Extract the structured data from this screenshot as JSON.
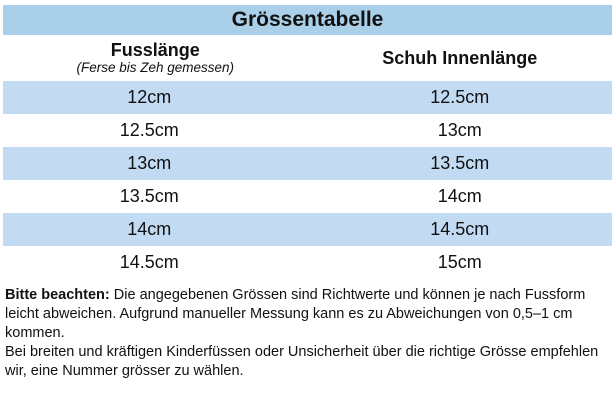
{
  "table": {
    "title": "Grössentabelle",
    "columns": {
      "foot_length": {
        "title": "Fusslänge",
        "subtitle": "(Ferse bis Zeh gemessen)"
      },
      "shoe_inner_length": {
        "title": "Schuh Innenlänge"
      }
    },
    "rows": [
      {
        "foot": "12cm",
        "shoe": "12.5cm"
      },
      {
        "foot": "12.5cm",
        "shoe": "13cm"
      },
      {
        "foot": "13cm",
        "shoe": "13.5cm"
      },
      {
        "foot": "13.5cm",
        "shoe": "14cm"
      },
      {
        "foot": "14cm",
        "shoe": "14.5cm"
      },
      {
        "foot": "14.5cm",
        "shoe": "15cm"
      }
    ],
    "colors": {
      "title_background": "#a9cfe9",
      "row_shading": "#c2dbf3"
    }
  },
  "notes": {
    "label": "Bitte beachten:",
    "text1": " Die angegebenen Grössen sind Richtwerte und können je nach Fussform leicht abweichen. Aufgrund manueller Messung kann es zu Abweichungen von 0,5–1 cm kommen.",
    "text2": "Bei breiten und kräftigen Kinderfüssen oder Unsicherheit über die richtige Grösse empfehlen wir, eine Nummer grösser zu wählen."
  }
}
